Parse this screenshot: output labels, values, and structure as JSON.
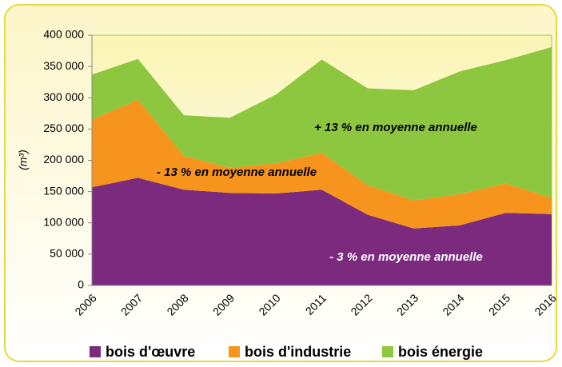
{
  "chart_data": {
    "type": "stacked_area",
    "categories": [
      "2006",
      "2007",
      "2008",
      "2009",
      "2010",
      "2011",
      "2012",
      "2013",
      "2014",
      "2015",
      "2016"
    ],
    "y_label": "(m³)",
    "series": [
      {
        "name": "bois d'œuvre",
        "color": "#7b2a7e",
        "values": [
          157000,
          172000,
          153000,
          148000,
          147000,
          153000,
          113000,
          91000,
          96000,
          116000,
          114000
        ]
      },
      {
        "name": "bois d'industrie",
        "color": "#f7941d",
        "values": [
          108000,
          125000,
          54000,
          40000,
          48000,
          59000,
          47000,
          45000,
          50000,
          47000,
          26000
        ]
      },
      {
        "name": "bois énergie",
        "color": "#8dc63f",
        "values": [
          72000,
          65000,
          65000,
          80000,
          110000,
          149000,
          155000,
          176000,
          196000,
          197000,
          241000
        ]
      }
    ],
    "annotations": [
      "+ 13 % en moyenne annuelle",
      "- 13 % en moyenne annuelle",
      "- 3 % en moyenne annuelle"
    ],
    "ylim": [
      0,
      400000
    ],
    "yticks": [
      0,
      {
        "value": 50000,
        "label": "50 000"
      },
      {
        "value": 100000,
        "label": "100 000"
      },
      {
        "value": 150000,
        "label": "150 000"
      },
      {
        "value": 200000,
        "label": "200 000"
      },
      {
        "value": 250000,
        "label": "250 000"
      },
      {
        "value": 300000,
        "label": "300 000"
      },
      {
        "value": 350000,
        "label": "350 000"
      },
      {
        "value": 400000,
        "label": "400 000"
      }
    ],
    "legend": "bottom"
  }
}
